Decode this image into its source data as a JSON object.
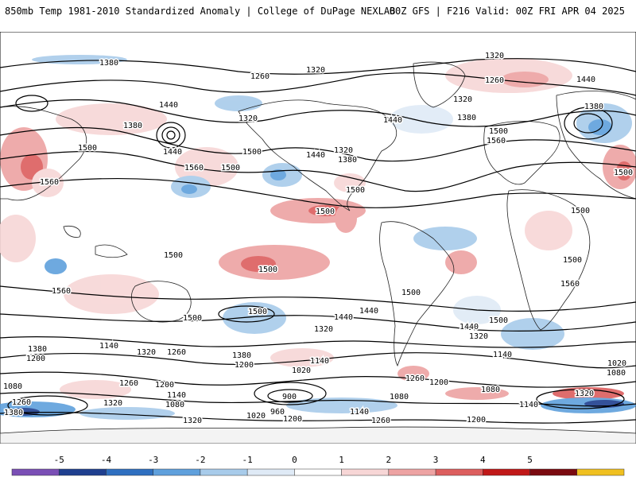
{
  "header": {
    "left_title": "850mb Temp 1981-2010 Standardized Anomaly | College of DuPage NEXLAB",
    "right_title": "00Z GFS | F216 Valid: 00Z FRI APR 04 2025"
  },
  "colorbar": {
    "ticks": [
      "-5",
      "-4",
      "-3",
      "-2",
      "-1",
      "0",
      "1",
      "2",
      "3",
      "4",
      "5"
    ],
    "colors": [
      "#7a4fb5",
      "#1f3f8f",
      "#2f6fc0",
      "#5fa0dc",
      "#a8cbea",
      "#dfeaf6",
      "#ffffff",
      "#f7d6d6",
      "#eda3a3",
      "#dc5e5e",
      "#c01818",
      "#7a0a10",
      "#f0c020"
    ]
  },
  "contour_labels": [
    "1380",
    "1320",
    "1260",
    "1320",
    "1440",
    "1320",
    "1260",
    "1440",
    "1380",
    "1320",
    "1440",
    "1380",
    "1500",
    "1560",
    "1380",
    "1500",
    "1440",
    "1560",
    "1500",
    "1440",
    "1320",
    "1380",
    "1500",
    "1500",
    "1560",
    "1500",
    "1500",
    "1500",
    "1500",
    "1500",
    "1560",
    "1500",
    "1500",
    "1560",
    "1500",
    "1440",
    "1500",
    "1440",
    "1500",
    "1320",
    "1440",
    "1320",
    "1380",
    "1320",
    "1260",
    "1380",
    "1140",
    "1200",
    "1140",
    "1200",
    "1020",
    "1140",
    "1260",
    "1200",
    "1080",
    "1140",
    "1020",
    "1080",
    "1260",
    "1320",
    "1200",
    "1080",
    "1140",
    "900",
    "1080",
    "1320",
    "1260",
    "1020",
    "960",
    "1200",
    "1140",
    "1260",
    "1200",
    "1380",
    "1080",
    "1140",
    "1320"
  ]
}
